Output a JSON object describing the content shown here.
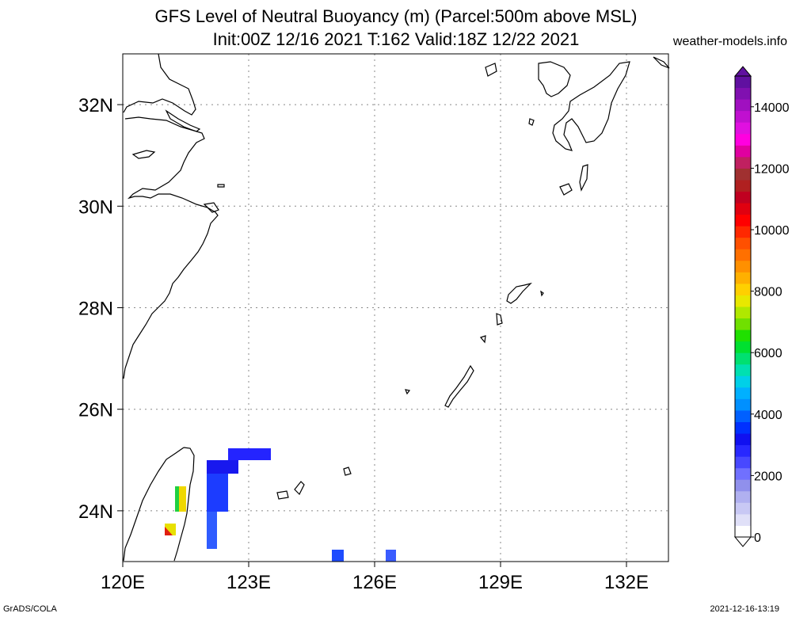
{
  "title": {
    "line1": "GFS Level of Neutral Buoyancy (m) (Parcel:500m above MSL)",
    "line2": "Init:00Z 12/16 2021 T:162 Valid:18Z 12/22 2021"
  },
  "site": "weather-models.info",
  "footer": {
    "left": "GrADS/COLA",
    "right": "2021-12-16-13:19"
  },
  "map": {
    "lon_range": [
      120,
      133
    ],
    "lat_range": [
      23,
      33
    ],
    "x_ticks": [
      {
        "value": 120,
        "label": "120E"
      },
      {
        "value": 123,
        "label": "123E"
      },
      {
        "value": 126,
        "label": "126E"
      },
      {
        "value": 129,
        "label": "129E"
      },
      {
        "value": 132,
        "label": "132E"
      }
    ],
    "y_ticks": [
      {
        "value": 32,
        "label": "32N"
      },
      {
        "value": 30,
        "label": "30N"
      },
      {
        "value": 28,
        "label": "28N"
      },
      {
        "value": 26,
        "label": "26N"
      },
      {
        "value": 24,
        "label": "24N"
      }
    ],
    "grid": true
  },
  "colorbar": {
    "min": 0,
    "max": 15000,
    "labels": [
      "0",
      "2000",
      "4000",
      "6000",
      "8000",
      "10000",
      "12000",
      "14000"
    ],
    "colors": [
      "#ffffff",
      "#e0e0f8",
      "#c8c8f4",
      "#b0b0f0",
      "#9090ec",
      "#7070ff",
      "#4848ff",
      "#2828ff",
      "#1010f0",
      "#0030ff",
      "#0060ff",
      "#0090ff",
      "#00b0ff",
      "#00d0e8",
      "#00e0b0",
      "#00e070",
      "#00e030",
      "#20e000",
      "#70e000",
      "#b0e800",
      "#e8e800",
      "#ffd000",
      "#ffb000",
      "#ff9000",
      "#ff7000",
      "#ff5000",
      "#ff2800",
      "#ff0000",
      "#e00010",
      "#c00020",
      "#b02020",
      "#a03030",
      "#c02060",
      "#e000a0",
      "#ff00e0",
      "#e010e0",
      "#c010d0",
      "#a010c0",
      "#8010b0",
      "#6010a0"
    ]
  }
}
